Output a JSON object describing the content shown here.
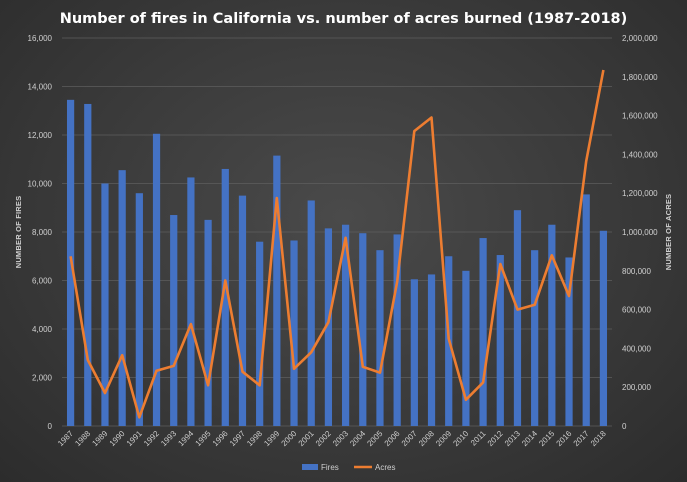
{
  "chart_data": {
    "type": "bar+line",
    "title": "Number of fires in California vs. number of acres burned (1987-2018)",
    "x": [
      "1987",
      "1988",
      "1989",
      "1990",
      "1991",
      "1992",
      "1993",
      "1994",
      "1995",
      "1996",
      "1997",
      "1998",
      "1999",
      "2000",
      "2001",
      "2002",
      "2003",
      "2004",
      "2005",
      "2006",
      "2007",
      "2008",
      "2009",
      "2010",
      "2011",
      "2012",
      "2013",
      "2014",
      "2015",
      "2016",
      "2017",
      "2018"
    ],
    "ylabel": "NUMBER OF FIRES",
    "y2label": "NUMBER OF ACRES",
    "ylim": [
      0,
      16000
    ],
    "y2lim": [
      0,
      2000000
    ],
    "yticks": [
      "0",
      "2,000",
      "4,000",
      "6,000",
      "8,000",
      "10,000",
      "12,000",
      "14,000",
      "16,000"
    ],
    "y2ticks": [
      "0",
      "200,000",
      "400,000",
      "600,000",
      "800,000",
      "1,000,000",
      "1,200,000",
      "1,400,000",
      "1,600,000",
      "1,800,000",
      "2,000,000"
    ],
    "grid": true,
    "legend_position": "bottom",
    "series": [
      {
        "name": "Fires",
        "kind": "bar",
        "axis": "left",
        "color": "#4472c4",
        "values": [
          13450,
          13280,
          10000,
          10550,
          9600,
          12050,
          8700,
          10250,
          8500,
          10600,
          9500,
          7600,
          11150,
          7650,
          9300,
          8150,
          8300,
          7950,
          7250,
          7900,
          6050,
          6250,
          7000,
          6400,
          7750,
          7050,
          8900,
          7250,
          8300,
          6950,
          9550,
          8050
        ]
      },
      {
        "name": "Acres",
        "kind": "line",
        "axis": "right",
        "color": "#ed7d31",
        "values": [
          875000,
          340000,
          170000,
          365000,
          45000,
          285000,
          310000,
          525000,
          210000,
          750000,
          280000,
          210000,
          1175000,
          295000,
          380000,
          535000,
          970000,
          305000,
          275000,
          745000,
          1520000,
          1590000,
          450000,
          135000,
          225000,
          835000,
          600000,
          625000,
          880000,
          670000,
          1365000,
          1835000
        ]
      }
    ]
  }
}
